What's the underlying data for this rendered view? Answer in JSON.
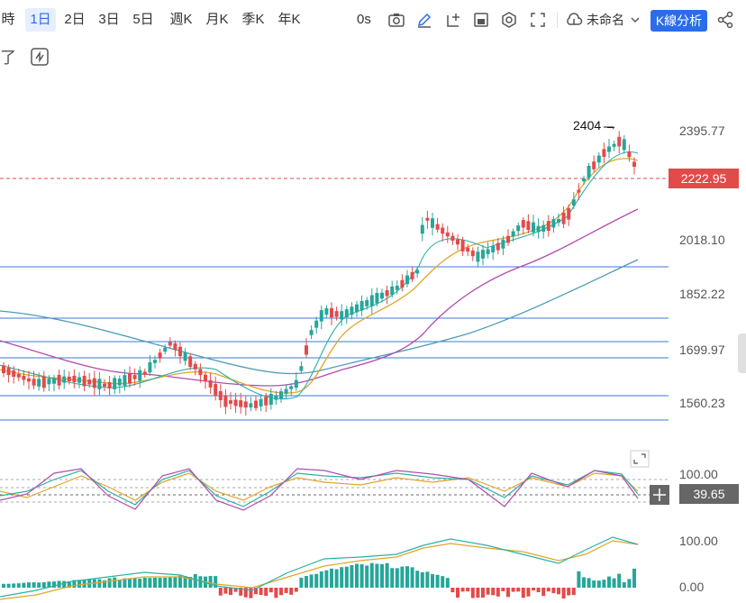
{
  "toolbar": {
    "timeframes": [
      "時",
      "1日",
      "2日",
      "3日",
      "5日",
      "週K",
      "月K",
      "季K",
      "年K"
    ],
    "active_timeframe": "1日",
    "interval_label": "0s",
    "layout_name": "未命名",
    "analysis_button": "K線分析"
  },
  "toolbar2": {
    "left_text": "了"
  },
  "price_axis": {
    "labels": [
      "2395.77",
      "2018.10",
      "1852.22",
      "1699.97",
      "1560.23"
    ],
    "current_price": "2222.95",
    "colors": {
      "up": "#26a69a",
      "down": "#e34a4a",
      "line_blue": "#3d7ad6"
    }
  },
  "annotation": {
    "text": "2404 →"
  },
  "oscillator1": {
    "label_top": "100.00",
    "current": "39.65"
  },
  "oscillator2": {
    "label_top": "100.00",
    "label_bottom": "0.00"
  }
}
